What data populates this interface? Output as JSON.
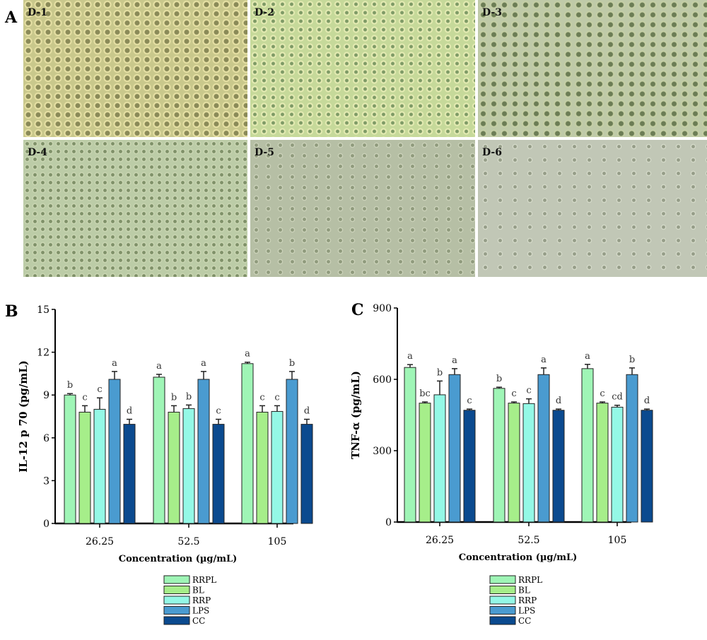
{
  "panel_labels": {
    "a": "A",
    "b": "B",
    "c": "C"
  },
  "micrographs": [
    "D-1",
    "D-2",
    "D-3",
    "D-4",
    "D-5",
    "D-6"
  ],
  "legend": [
    "RRPL",
    "BL",
    "RRP",
    "LPS",
    "CC"
  ],
  "colors": {
    "RRPL": "#9ff5b6",
    "BL": "#a6ee8a",
    "RRP": "#94f8e6",
    "LPS": "#4a9bd0",
    "CC": "#0b4a8f"
  },
  "chart_data": [
    {
      "type": "bar",
      "panel": "B",
      "ylabel": "IL-12 p 70 (pg/mL)",
      "xlabel": "Concentration (µg/mL)",
      "categories": [
        "26.25",
        "52.5",
        "105"
      ],
      "ylim": [
        0,
        15
      ],
      "yticks": [
        0,
        3,
        6,
        9,
        12,
        15
      ],
      "series": [
        {
          "name": "RRPL",
          "values": [
            9.0,
            10.25,
            11.2
          ],
          "errors": [
            0.1,
            0.2,
            0.1
          ],
          "letters": [
            "b",
            "a",
            "a"
          ]
        },
        {
          "name": "BL",
          "values": [
            7.8,
            7.8,
            7.8
          ],
          "errors": [
            0.45,
            0.45,
            0.45
          ],
          "letters": [
            "c",
            "b",
            "c"
          ]
        },
        {
          "name": "RRP",
          "values": [
            8.0,
            8.05,
            7.85
          ],
          "errors": [
            0.8,
            0.25,
            0.4
          ],
          "letters": [
            "c",
            "b",
            "c"
          ]
        },
        {
          "name": "LPS",
          "values": [
            10.1,
            10.1,
            10.1
          ],
          "errors": [
            0.55,
            0.55,
            0.55
          ],
          "letters": [
            "a",
            "a",
            "b"
          ]
        },
        {
          "name": "CC",
          "values": [
            6.95,
            6.95,
            6.95
          ],
          "errors": [
            0.35,
            0.35,
            0.35
          ],
          "letters": [
            "d",
            "c",
            "d"
          ]
        }
      ]
    },
    {
      "type": "bar",
      "panel": "C",
      "ylabel": "TNF-α (pg/mL)",
      "xlabel": "Concentration (µg/mL)",
      "categories": [
        "26.25",
        "52.5",
        "105"
      ],
      "ylim": [
        0,
        900
      ],
      "yticks": [
        0,
        300,
        600,
        900
      ],
      "series": [
        {
          "name": "RRPL",
          "values": [
            650,
            562,
            645
          ],
          "errors": [
            12,
            5,
            18
          ],
          "letters": [
            "a",
            "b",
            "a"
          ]
        },
        {
          "name": "BL",
          "values": [
            500,
            500,
            500
          ],
          "errors": [
            5,
            5,
            5
          ],
          "letters": [
            "bc",
            "c",
            "c"
          ]
        },
        {
          "name": "RRP",
          "values": [
            535,
            498,
            483
          ],
          "errors": [
            58,
            20,
            8
          ],
          "letters": [
            "b",
            "c",
            "cd"
          ]
        },
        {
          "name": "LPS",
          "values": [
            620,
            620,
            620
          ],
          "errors": [
            25,
            28,
            28
          ],
          "letters": [
            "a",
            "a",
            "b"
          ]
        },
        {
          "name": "CC",
          "values": [
            470,
            470,
            470
          ],
          "errors": [
            5,
            5,
            5
          ],
          "letters": [
            "c",
            "d",
            "d"
          ]
        }
      ]
    }
  ]
}
